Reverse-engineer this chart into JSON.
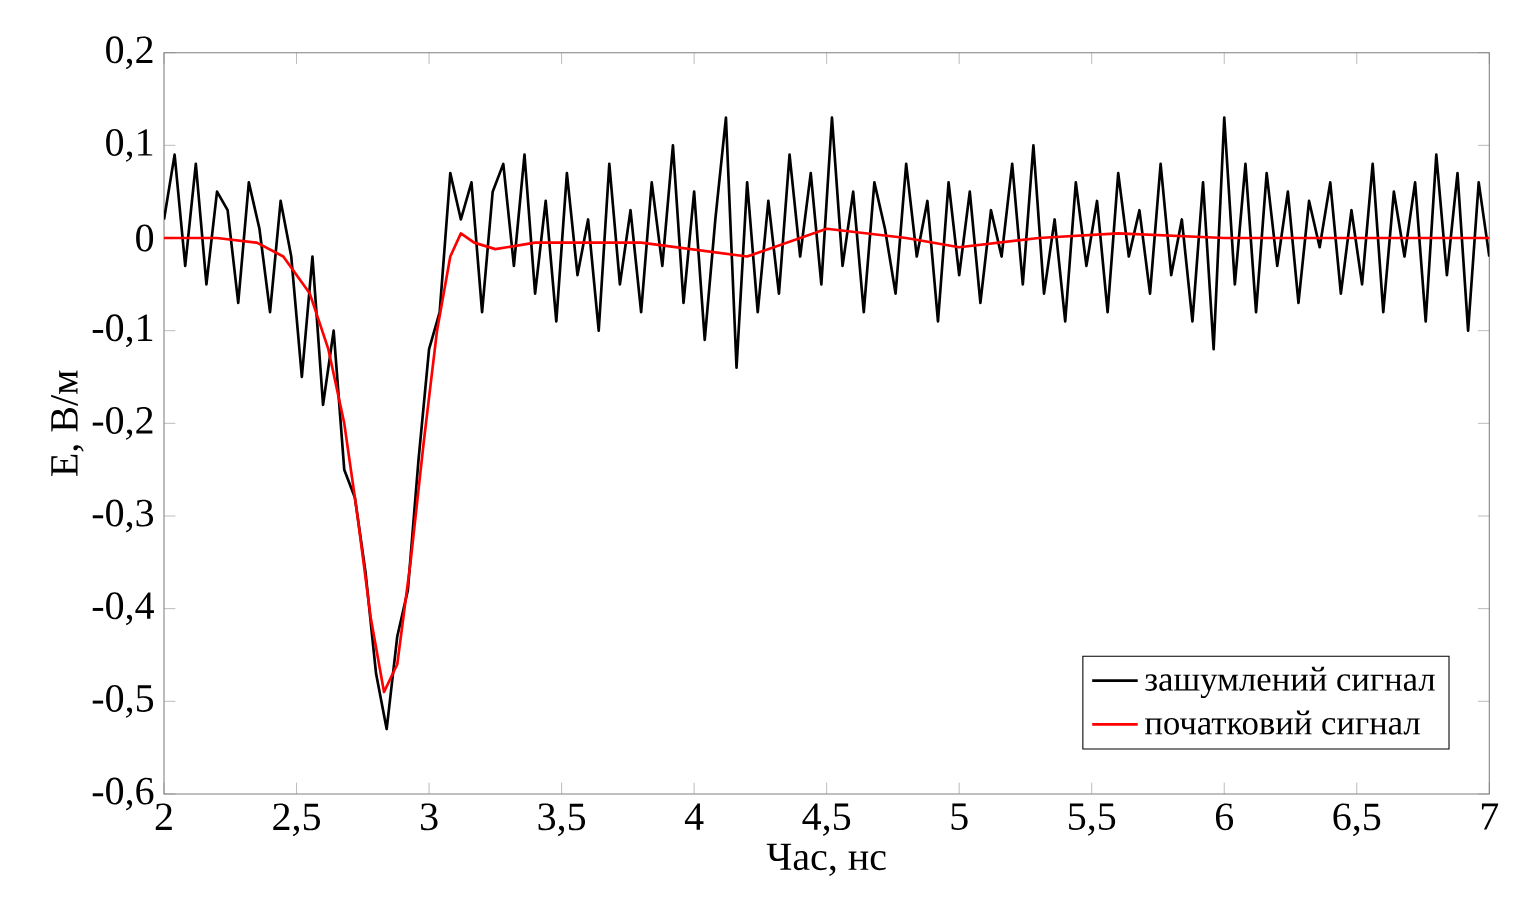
{
  "chart_data": {
    "type": "line",
    "xlabel": "Час, нс",
    "ylabel": "E, В/м",
    "xlim": [
      2,
      7
    ],
    "ylim": [
      -0.6,
      0.2
    ],
    "xticks": [
      2,
      {
        "value": 2.5,
        "label": "2,5"
      },
      3,
      {
        "value": 3.5,
        "label": "3,5"
      },
      4,
      {
        "value": 4.5,
        "label": "4,5"
      },
      5,
      {
        "value": 5.5,
        "label": "5,5"
      },
      6,
      {
        "value": 6.5,
        "label": "6,5"
      },
      7
    ],
    "yticks": [
      {
        "value": -0.6,
        "label": "-0,6"
      },
      {
        "value": -0.5,
        "label": "-0,5"
      },
      {
        "value": -0.4,
        "label": "-0,4"
      },
      {
        "value": -0.3,
        "label": "-0,3"
      },
      {
        "value": -0.2,
        "label": "-0,2"
      },
      {
        "value": -0.1,
        "label": "-0,1"
      },
      0,
      {
        "value": 0.1,
        "label": "0,1"
      },
      {
        "value": 0.2,
        "label": "0,2"
      }
    ],
    "grid": false,
    "legend": "bottom right",
    "marker": "none",
    "line_style": "solid",
    "series": [
      {
        "name": "зашумлений сигнал",
        "color": "#000000",
        "x": [
          2.0,
          2.04,
          2.08,
          2.12,
          2.16,
          2.2,
          2.24,
          2.28,
          2.32,
          2.36,
          2.4,
          2.44,
          2.48,
          2.52,
          2.56,
          2.6,
          2.64,
          2.68,
          2.72,
          2.76,
          2.8,
          2.84,
          2.88,
          2.92,
          2.96,
          3.0,
          3.04,
          3.08,
          3.12,
          3.16,
          3.2,
          3.24,
          3.28,
          3.32,
          3.36,
          3.4,
          3.44,
          3.48,
          3.52,
          3.56,
          3.6,
          3.64,
          3.68,
          3.72,
          3.76,
          3.8,
          3.84,
          3.88,
          3.92,
          3.96,
          4.0,
          4.04,
          4.08,
          4.12,
          4.16,
          4.2,
          4.24,
          4.28,
          4.32,
          4.36,
          4.4,
          4.44,
          4.48,
          4.52,
          4.56,
          4.6,
          4.64,
          4.68,
          4.72,
          4.76,
          4.8,
          4.84,
          4.88,
          4.92,
          4.96,
          5.0,
          5.04,
          5.08,
          5.12,
          5.16,
          5.2,
          5.24,
          5.28,
          5.32,
          5.36,
          5.4,
          5.44,
          5.48,
          5.52,
          5.56,
          5.6,
          5.64,
          5.68,
          5.72,
          5.76,
          5.8,
          5.84,
          5.88,
          5.92,
          5.96,
          6.0,
          6.04,
          6.08,
          6.12,
          6.16,
          6.2,
          6.24,
          6.28,
          6.32,
          6.36,
          6.4,
          6.44,
          6.48,
          6.52,
          6.56,
          6.6,
          6.64,
          6.68,
          6.72,
          6.76,
          6.8,
          6.84,
          6.88,
          6.92,
          6.96,
          7.0
        ],
        "values": [
          0.02,
          0.09,
          -0.03,
          0.08,
          -0.05,
          0.05,
          0.03,
          -0.07,
          0.06,
          0.01,
          -0.08,
          0.04,
          -0.02,
          -0.15,
          -0.02,
          -0.18,
          -0.1,
          -0.25,
          -0.28,
          -0.36,
          -0.47,
          -0.53,
          -0.43,
          -0.38,
          -0.24,
          -0.12,
          -0.08,
          0.07,
          0.02,
          0.06,
          -0.08,
          0.05,
          0.08,
          -0.03,
          0.09,
          -0.06,
          0.04,
          -0.09,
          0.07,
          -0.04,
          0.02,
          -0.1,
          0.08,
          -0.05,
          0.03,
          -0.08,
          0.06,
          -0.03,
          0.1,
          -0.07,
          0.05,
          -0.11,
          0.02,
          0.13,
          -0.14,
          0.06,
          -0.08,
          0.04,
          -0.06,
          0.09,
          -0.02,
          0.07,
          -0.05,
          0.13,
          -0.03,
          0.05,
          -0.08,
          0.06,
          0.01,
          -0.06,
          0.08,
          -0.02,
          0.04,
          -0.09,
          0.06,
          -0.04,
          0.05,
          -0.07,
          0.03,
          -0.02,
          0.08,
          -0.05,
          0.1,
          -0.06,
          0.02,
          -0.09,
          0.06,
          -0.03,
          0.04,
          -0.08,
          0.07,
          -0.02,
          0.03,
          -0.06,
          0.08,
          -0.04,
          0.02,
          -0.09,
          0.06,
          -0.12,
          0.13,
          -0.05,
          0.08,
          -0.08,
          0.07,
          -0.03,
          0.05,
          -0.07,
          0.04,
          -0.01,
          0.06,
          -0.06,
          0.03,
          -0.05,
          0.08,
          -0.08,
          0.05,
          -0.02,
          0.06,
          -0.09,
          0.09,
          -0.04,
          0.07,
          -0.1,
          0.06,
          -0.02
        ]
      },
      {
        "name": "початковий сигнал",
        "color": "#ff0000",
        "x": [
          2,
          2.2,
          2.35,
          2.45,
          2.55,
          2.62,
          2.68,
          2.73,
          2.78,
          2.83,
          2.88,
          2.93,
          2.98,
          3.03,
          3.08,
          3.12,
          3.17,
          3.25,
          3.4,
          3.8,
          4.2,
          4.5,
          4.8,
          5.0,
          5.3,
          5.6,
          6,
          7
        ],
        "values": [
          0,
          0,
          -0.005,
          -0.02,
          -0.06,
          -0.12,
          -0.2,
          -0.3,
          -0.41,
          -0.49,
          -0.46,
          -0.35,
          -0.22,
          -0.1,
          -0.02,
          0.005,
          -0.005,
          -0.012,
          -0.005,
          -0.005,
          -0.02,
          0.01,
          0,
          -0.01,
          0,
          0.005,
          0,
          0
        ]
      }
    ]
  }
}
